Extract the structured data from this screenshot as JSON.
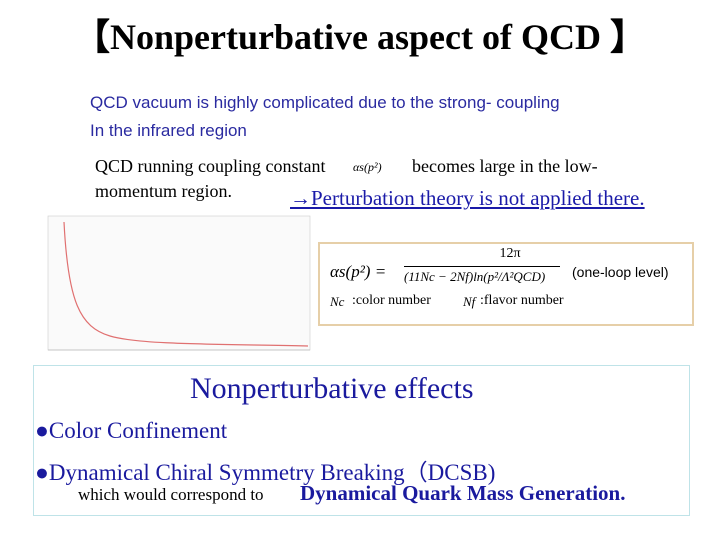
{
  "header": {
    "title": "【Nonperturbative aspect of QCD 】"
  },
  "intro": [
    "QCD vacuum is highly complicated due to the strong- coupling",
    "In the infrared region"
  ],
  "running": {
    "before": "QCD running coupling constant",
    "symbol": "αs(p²)",
    "after": "becomes large in the low-",
    "line2": "momentum region.",
    "arrow_note": "→Perturbation theory is not applied there."
  },
  "formula": {
    "lhs": "αs(p²) =",
    "numerator": "12π",
    "denominator": "(11Nc − 2Nf)ln(p²/Λ²QCD)",
    "note": "(one-loop level)",
    "nc": "Nc",
    "nc_desc": ":color number",
    "nf": "Nf",
    "nf_desc": ":flavor number"
  },
  "effects": {
    "heading": "Nonperturbative effects",
    "items": [
      "●Color Confinement",
      "●Dynamical Chiral Symmetry Breaking（DCSB)"
    ],
    "tail_lead": "which would correspond to",
    "tail_main": "Dynamical Quark Mass Generation."
  }
}
